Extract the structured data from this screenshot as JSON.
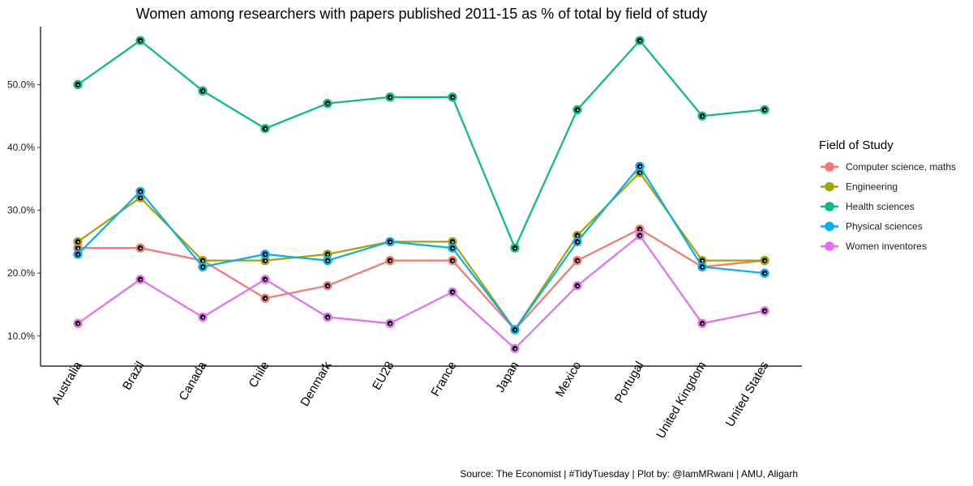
{
  "chart_data": {
    "type": "line",
    "title": "Women among researchers with papers published 2011-15 as % of total by field of study",
    "caption": "Source: The Economist | #TidyTuesday | Plot by: @IamMRwani | AMU, Aligarh",
    "xlabel": "",
    "ylabel": "",
    "categories": [
      "Australia",
      "Brazil",
      "Canada",
      "Chile",
      "Denmark",
      "EU28",
      "France",
      "Japan",
      "Mexico",
      "Portugal",
      "United Kingdom",
      "United States"
    ],
    "y_ticks": [
      {
        "value": 10,
        "label": "10.0%"
      },
      {
        "value": 20,
        "label": "20.0%"
      },
      {
        "value": 30,
        "label": "30.0%"
      },
      {
        "value": 40,
        "label": "40.0%"
      },
      {
        "value": 50,
        "label": "50.0%"
      }
    ],
    "ylim": [
      5.2,
      59.2
    ],
    "legend": {
      "title": "Field of Study",
      "position": "right"
    },
    "series": [
      {
        "name": "Computer science, maths",
        "color": "#F8766D",
        "values": [
          24,
          24,
          22,
          16,
          18,
          22,
          22,
          11,
          22,
          27,
          21,
          22
        ]
      },
      {
        "name": "Engineering",
        "color": "#A3A500",
        "values": [
          25,
          32,
          22,
          22,
          23,
          25,
          25,
          11,
          26,
          36,
          22,
          22
        ]
      },
      {
        "name": "Health sciences",
        "color": "#00BF7D",
        "values": [
          50,
          57,
          49,
          43,
          47,
          48,
          48,
          24,
          46,
          57,
          45,
          46
        ]
      },
      {
        "name": "Physical sciences",
        "color": "#00B0F6",
        "values": [
          23,
          33,
          21,
          23,
          22,
          25,
          24,
          11,
          25,
          37,
          21,
          20
        ]
      },
      {
        "name": "Women inventores",
        "color": "#E76BF3",
        "values": [
          12,
          19,
          13,
          19,
          13,
          12,
          17,
          8,
          18,
          26,
          12,
          14
        ]
      }
    ]
  }
}
